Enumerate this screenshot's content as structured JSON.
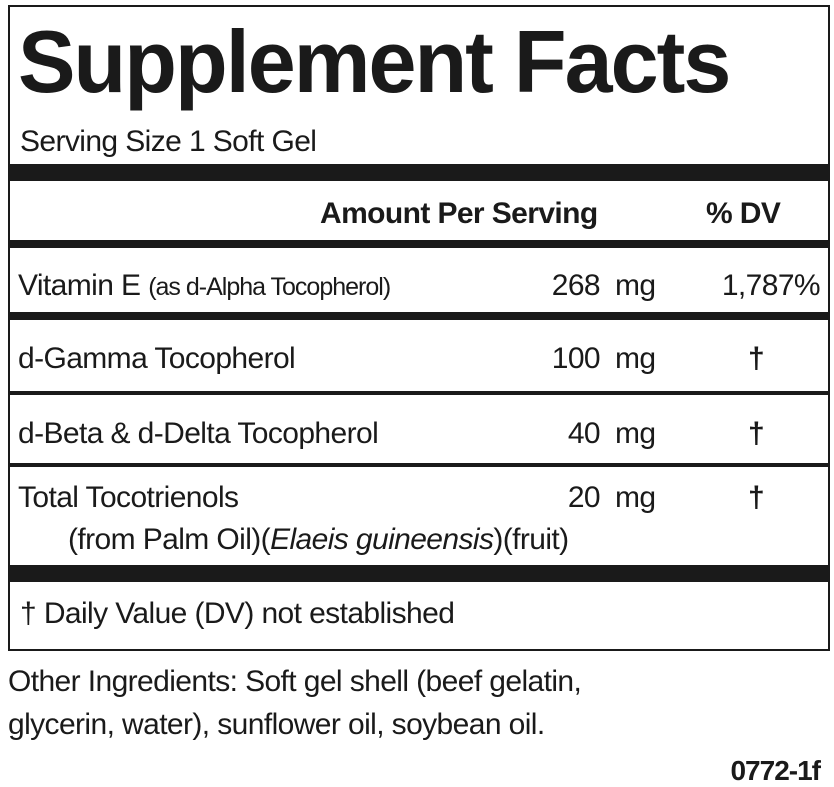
{
  "title": "Supplement Facts",
  "serving_size": "Serving Size 1 Soft Gel",
  "header": {
    "amount": "Amount Per Serving",
    "dv": "% DV"
  },
  "rows": [
    {
      "name": "Vitamin E",
      "detail": "(as d-Alpha Tocopherol)",
      "amount": "268",
      "unit": "mg",
      "dv": "1,787%"
    },
    {
      "name": "d-Gamma Tocopherol",
      "amount": "100",
      "unit": "mg",
      "dv": "†"
    },
    {
      "name": "d-Beta & d-Delta Tocopherol",
      "amount": "40",
      "unit": "mg",
      "dv": "†"
    },
    {
      "name": "Total Tocotrienols",
      "amount": "20",
      "unit": "mg",
      "dv": "†",
      "source_a": "(from Palm Oil)(",
      "source_latin": "Elaeis guineensis",
      "source_b": ")(fruit)"
    }
  ],
  "footnote": "† Daily Value (DV) not established",
  "other_ingredients": {
    "line1": "Other Ingredients: Soft gel shell (beef gelatin,",
    "line2": "glycerin, water), sunflower oil, soybean oil."
  },
  "code": "0772-1f"
}
